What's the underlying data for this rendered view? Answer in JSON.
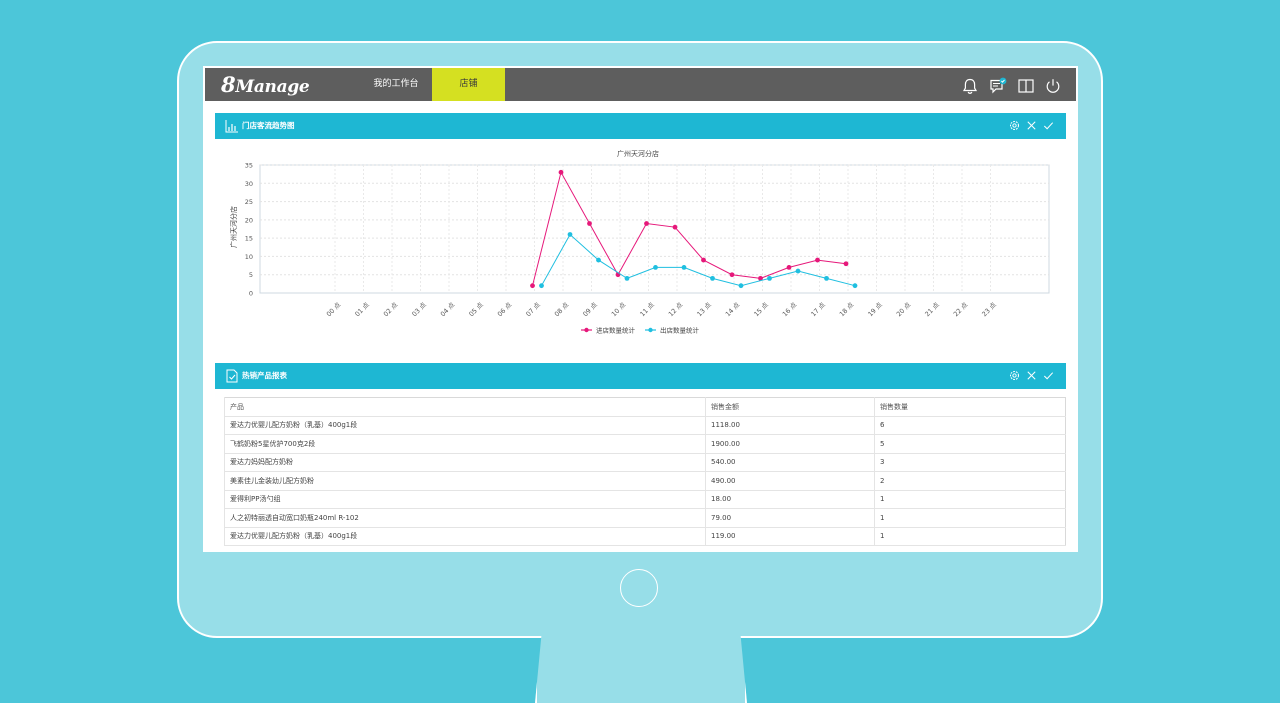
{
  "app": {
    "logo_eight": "8",
    "logo_text": "Manage"
  },
  "nav": {
    "workbench": "我的工作台",
    "store": "店铺"
  },
  "toolbar_icons": [
    "bell-icon",
    "message-icon",
    "book-icon",
    "power-icon"
  ],
  "colors": {
    "accent": "#1eb7d3",
    "nav_active": "#d5e021",
    "series_in": "#e6187a",
    "series_out": "#1fbfe0"
  },
  "traffic_panel": {
    "title": "门店客流趋势图",
    "controls": [
      "settings-icon",
      "close-icon",
      "check-icon"
    ]
  },
  "chart_data": {
    "type": "line",
    "title": "广州天河分店",
    "ylabel": "广州天河分店",
    "xlabel": "",
    "categories": [
      "00 点",
      "01 点",
      "02 点",
      "03 点",
      "04 点",
      "05 点",
      "06 点",
      "07 点",
      "08 点",
      "09 点",
      "10 点",
      "11 点",
      "12 点",
      "13 点",
      "14 点",
      "15 点",
      "16 点",
      "17 点",
      "18 点",
      "19 点",
      "20 点",
      "21 点",
      "22 点",
      "23 点"
    ],
    "yticks": [
      0,
      5,
      10,
      15,
      20,
      25,
      30,
      35
    ],
    "ylim": [
      0,
      35
    ],
    "grid": true,
    "legend": "bottom-center",
    "series": [
      {
        "name": "进店数量统计",
        "color": "#e6187a",
        "values": [
          null,
          null,
          null,
          null,
          null,
          null,
          null,
          2,
          33,
          19,
          5,
          19,
          18,
          9,
          5,
          4,
          7,
          9,
          8,
          null,
          null,
          null,
          null,
          null
        ]
      },
      {
        "name": "出店数量统计",
        "color": "#1fbfe0",
        "values": [
          null,
          null,
          null,
          null,
          null,
          null,
          null,
          2,
          16,
          9,
          4,
          7,
          7,
          4,
          2,
          4,
          6,
          4,
          2,
          null,
          null,
          null,
          null,
          null
        ]
      }
    ]
  },
  "products_panel": {
    "title": "热销产品报表",
    "controls": [
      "settings-icon",
      "close-icon",
      "check-icon"
    ],
    "columns": [
      "产品",
      "销售金额",
      "销售数量"
    ],
    "rows": [
      [
        "爱达力优婴儿配方奶粉（乳基）400g1段",
        "1118.00",
        "6"
      ],
      [
        "飞鹤奶粉5星优护700克2段",
        "1900.00",
        "5"
      ],
      [
        "爱达力妈妈配方奶粉",
        "540.00",
        "3"
      ],
      [
        "美素佳儿金装幼儿配方奶粉",
        "490.00",
        "2"
      ],
      [
        "爱得利PP汤勺组",
        "18.00",
        "1"
      ],
      [
        "人之初特丽透自动宽口奶瓶240ml R-102",
        "79.00",
        "1"
      ],
      [
        "爱达力优婴儿配方奶粉（乳基）400g1段",
        "119.00",
        "1"
      ]
    ]
  }
}
